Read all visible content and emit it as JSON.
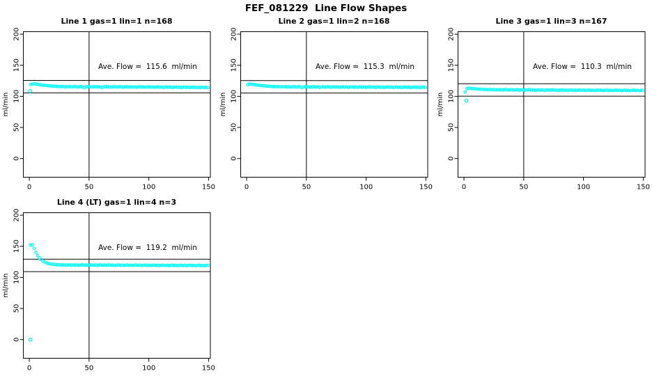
{
  "page_title": "FEF_081229  Line Flow Shapes",
  "colors": {
    "point": "#00FFFF",
    "axis": "#000000",
    "background": "#FFFFFF"
  },
  "chart_data": [
    {
      "type": "scatter",
      "title": "Line 1 gas=1 lin=1 n=168",
      "gas": 1,
      "lin": 1,
      "n": 168,
      "ave_flow": 115.6,
      "annotation": "Ave. Flow =  115.6  ml/min",
      "ylabel": "ml/min",
      "xlabel": "",
      "x_ticks": [
        0,
        50,
        100,
        150
      ],
      "y_ticks": [
        0,
        50,
        100,
        150,
        200
      ],
      "xlim": [
        -5,
        151.5
      ],
      "ylim": [
        -30,
        204
      ],
      "vline_x": 50,
      "hlines": [
        125.6,
        105.6
      ],
      "marker": "open-circle",
      "grid": false,
      "x_rule": {
        "start": 1,
        "step": 1.5
      },
      "y": [
        119.2,
        119.6,
        120.2,
        119.8,
        119.4,
        118.9,
        118.5,
        118.1,
        117.7,
        117.4,
        117.1,
        116.8,
        116.5,
        116.3,
        116.1,
        115.9,
        115.8,
        115.6,
        115.9,
        115.4,
        115.7,
        115.3,
        115.6,
        115.2,
        115.5,
        115.8,
        115.1,
        115.4,
        115.6,
        115.2,
        113.9,
        115.5,
        115.3,
        115.6,
        115.1,
        115.4,
        115.7,
        115.2,
        115.5,
        115.0,
        114.1,
        115.3,
        115.6,
        115.1,
        115.4,
        114.9,
        115.2,
        115.5,
        115.0,
        115.3,
        115.6,
        115.1,
        114.8,
        115.2,
        115.4,
        114.9,
        115.2,
        115.0,
        115.3,
        114.8,
        115.1,
        115.4,
        114.9,
        115.2,
        114.7,
        115.0,
        115.3,
        114.8,
        115.1,
        114.6,
        114.9,
        115.2,
        114.7,
        115.0,
        114.5,
        114.8,
        115.1,
        114.6,
        114.9,
        114.4,
        114.7,
        115.0,
        114.5,
        114.8,
        114.3,
        114.6,
        114.9,
        114.4,
        114.7,
        114.2,
        114.5,
        114.8,
        114.3,
        114.6,
        114.1,
        114.4,
        114.7,
        114.2,
        114.5,
        114.0
      ],
      "extra_points": [
        [
          0.8,
          108.5
        ]
      ]
    },
    {
      "type": "scatter",
      "title": "Line 2 gas=1 lin=2 n=168",
      "gas": 1,
      "lin": 2,
      "n": 168,
      "ave_flow": 115.3,
      "annotation": "Ave. Flow =  115.3  ml/min",
      "ylabel": "ml/min",
      "xlabel": "",
      "x_ticks": [
        0,
        50,
        100,
        150
      ],
      "y_ticks": [
        0,
        50,
        100,
        150,
        200
      ],
      "xlim": [
        -5,
        151.5
      ],
      "ylim": [
        -30,
        204
      ],
      "vline_x": 50,
      "hlines": [
        125.3,
        105.3
      ],
      "marker": "open-circle",
      "grid": false,
      "x_rule": {
        "start": 1,
        "step": 1.5
      },
      "y": [
        118.9,
        119.8,
        119.5,
        119.1,
        118.7,
        118.3,
        117.9,
        117.5,
        117.2,
        116.9,
        116.6,
        116.4,
        116.2,
        116.0,
        115.8,
        115.7,
        115.5,
        115.8,
        115.4,
        115.7,
        115.3,
        115.6,
        115.2,
        115.5,
        115.1,
        115.4,
        115.7,
        115.0,
        115.3,
        115.6,
        114.0,
        115.2,
        115.5,
        115.1,
        115.4,
        114.9,
        115.2,
        115.5,
        115.0,
        115.3,
        114.2,
        115.1,
        115.4,
        114.9,
        115.2,
        115.5,
        114.8,
        115.1,
        115.4,
        114.9,
        115.2,
        114.7,
        115.0,
        115.3,
        114.8,
        115.1,
        114.6,
        115.0,
        115.3,
        114.8,
        115.1,
        114.6,
        114.9,
        115.2,
        114.7,
        115.0,
        114.5,
        114.9,
        115.2,
        114.7,
        115.0,
        114.5,
        114.8,
        115.1,
        114.6,
        114.9,
        114.4,
        114.8,
        115.1,
        114.6,
        114.9,
        114.4,
        114.7,
        115.0,
        114.5,
        114.8,
        114.3,
        114.7,
        115.0,
        114.5,
        114.8,
        114.3,
        114.6,
        114.9,
        114.4,
        114.7,
        114.2,
        114.6,
        114.9,
        114.4
      ],
      "extra_points": []
    },
    {
      "type": "scatter",
      "title": "Line 3 gas=1 lin=3 n=167",
      "gas": 1,
      "lin": 3,
      "n": 167,
      "ave_flow": 110.3,
      "annotation": "Ave. Flow =  110.3  ml/min",
      "ylabel": "ml/min",
      "xlabel": "",
      "x_ticks": [
        0,
        50,
        100,
        150
      ],
      "y_ticks": [
        0,
        50,
        100,
        150,
        200
      ],
      "xlim": [
        -5,
        151.5
      ],
      "ylim": [
        -30,
        204
      ],
      "vline_x": 50,
      "hlines": [
        120.3,
        100.3
      ],
      "marker": "open-circle",
      "grid": false,
      "x_rule": {
        "start": 1,
        "step": 1.5
      },
      "y": [
        107.0,
        112.5,
        113.2,
        112.9,
        112.6,
        112.3,
        112.0,
        111.8,
        111.6,
        111.4,
        111.2,
        111.1,
        110.9,
        110.8,
        111.1,
        110.6,
        110.9,
        110.5,
        110.8,
        110.4,
        110.7,
        110.3,
        110.6,
        110.9,
        110.2,
        110.5,
        110.8,
        110.1,
        110.4,
        110.7,
        110.0,
        110.3,
        110.6,
        109.9,
        110.2,
        110.5,
        110.8,
        110.1,
        110.4,
        109.9,
        110.2,
        110.5,
        110.0,
        110.3,
        109.8,
        110.1,
        110.4,
        109.9,
        110.2,
        110.5,
        109.8,
        110.1,
        109.6,
        110.0,
        110.3,
        109.8,
        110.1,
        109.6,
        109.9,
        110.2,
        109.7,
        110.0,
        109.5,
        109.9,
        110.2,
        109.7,
        110.0,
        109.5,
        109.8,
        110.1,
        109.6,
        109.9,
        109.4,
        109.8,
        110.1,
        109.6,
        109.9,
        109.4,
        109.7,
        110.0,
        109.5,
        109.8,
        109.3,
        109.7,
        110.0,
        109.5,
        109.8,
        109.3,
        109.6,
        109.9,
        109.4,
        109.7,
        109.2,
        109.6,
        109.9,
        109.4,
        109.7,
        109.2,
        109.5,
        109.8
      ],
      "extra_points": [
        [
          2,
          93
        ]
      ]
    },
    {
      "type": "scatter",
      "title": "Line 4 (LT) gas=1 lin=4 n=3",
      "gas": 1,
      "lin": 4,
      "n": 3,
      "ave_flow": 119.2,
      "annotation": "Ave. Flow =  119.2  ml/min",
      "ylabel": "ml/min",
      "xlabel": "",
      "x_ticks": [
        0,
        50,
        100,
        150
      ],
      "y_ticks": [
        0,
        50,
        100,
        150,
        200
      ],
      "xlim": [
        -5,
        151.5
      ],
      "ylim": [
        -30,
        204
      ],
      "vline_x": 50,
      "hlines": [
        129.2,
        109.2
      ],
      "marker": "open-circle",
      "grid": false,
      "x_rule": {
        "start": 1,
        "step": 1.5
      },
      "y": [
        152.0,
        152.4,
        146.8,
        140.2,
        135.1,
        131.3,
        128.4,
        126.2,
        124.6,
        123.3,
        122.4,
        121.7,
        121.2,
        120.8,
        120.5,
        120.2,
        120.1,
        120.0,
        119.9,
        119.8,
        120.0,
        119.8,
        120.1,
        119.7,
        120.0,
        119.6,
        119.9,
        119.5,
        119.8,
        120.1,
        119.6,
        119.9,
        119.4,
        119.8,
        120.0,
        119.5,
        119.8,
        119.4,
        119.7,
        120.0,
        119.5,
        119.8,
        119.3,
        119.7,
        119.9,
        119.4,
        119.7,
        119.3,
        119.6,
        119.9,
        119.4,
        119.7,
        119.2,
        119.6,
        119.8,
        119.3,
        119.6,
        119.2,
        119.5,
        119.8,
        119.3,
        119.6,
        119.1,
        119.5,
        119.7,
        119.2,
        119.5,
        119.1,
        119.4,
        119.7,
        119.2,
        119.5,
        119.0,
        119.4,
        119.6,
        119.1,
        119.4,
        119.0,
        119.3,
        119.6,
        119.1,
        119.4,
        118.9,
        119.3,
        119.5,
        119.0,
        119.3,
        118.9,
        119.2,
        119.5,
        119.0,
        119.3,
        118.8,
        119.2,
        119.4,
        118.9,
        119.2,
        118.8,
        119.1,
        119.4
      ],
      "extra_points": [
        [
          1,
          0
        ]
      ]
    }
  ]
}
